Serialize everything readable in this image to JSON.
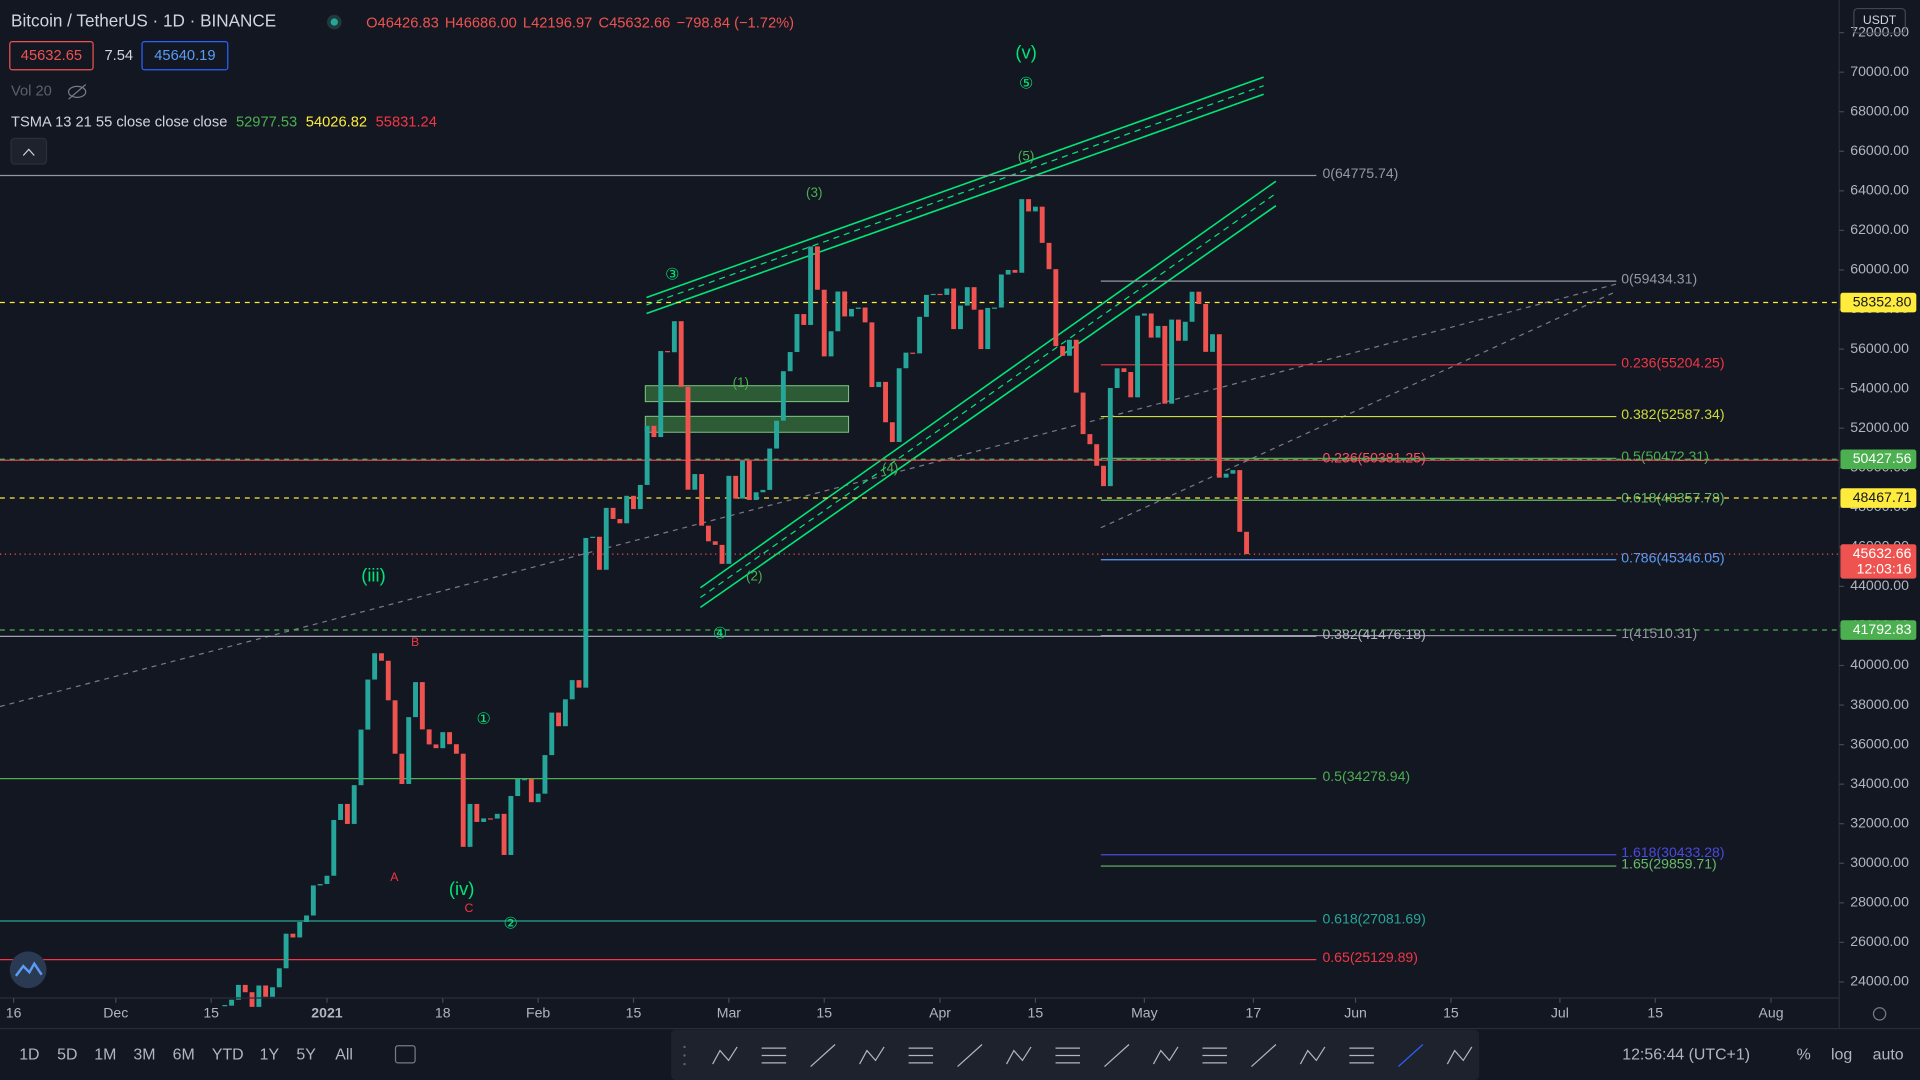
{
  "header": {
    "title": "Bitcoin / TetherUS · 1D · BINANCE",
    "ohlc": [
      "O46426.83",
      "H46686.00",
      "L42196.97",
      "C45632.66",
      "−798.84 (−1.72%)"
    ],
    "bid": "45632.65",
    "spread": "7.54",
    "ask": "45640.19",
    "volume": "Vol 20",
    "indicator": "TSMA 13 21 55 close close close",
    "indicator_values": [
      {
        "text": "52977.53",
        "color": "#4caf50"
      },
      {
        "text": "54026.82",
        "color": "#ffeb3b"
      },
      {
        "text": "55831.24",
        "color": "#f23645"
      }
    ],
    "axis_unit": "USDT"
  },
  "toolbar": {
    "timeframes": [
      "1D",
      "5D",
      "1M",
      "3M",
      "6M",
      "YTD",
      "1Y",
      "5Y",
      "All"
    ],
    "clock": "12:56:44 (UTC+1)",
    "scale_options": [
      "%",
      "log",
      "auto"
    ]
  },
  "chart_data": {
    "type": "candlestick",
    "colors": {
      "up": "#26a69a",
      "down": "#ef5350"
    },
    "x": [
      "2020-12-17",
      "2020-12-18",
      "2020-12-19",
      "2020-12-20",
      "2020-12-21",
      "2020-12-22",
      "2020-12-23",
      "2020-12-24",
      "2020-12-25",
      "2020-12-26",
      "2020-12-27",
      "2020-12-28",
      "2020-12-29",
      "2020-12-30",
      "2020-12-31",
      "2021-01-01",
      "2021-01-02",
      "2021-01-03",
      "2021-01-04",
      "2021-01-05",
      "2021-01-06",
      "2021-01-07",
      "2021-01-08",
      "2021-01-09",
      "2021-01-10",
      "2021-01-11",
      "2021-01-12",
      "2021-01-13",
      "2021-01-14",
      "2021-01-15",
      "2021-01-16",
      "2021-01-17",
      "2021-01-18",
      "2021-01-19",
      "2021-01-20",
      "2021-01-21",
      "2021-01-22",
      "2021-01-23",
      "2021-01-24",
      "2021-01-25",
      "2021-01-26",
      "2021-01-27",
      "2021-01-28",
      "2021-01-29",
      "2021-01-30",
      "2021-01-31",
      "2021-02-01",
      "2021-02-02",
      "2021-02-03",
      "2021-02-04",
      "2021-02-05",
      "2021-02-06",
      "2021-02-07",
      "2021-02-08",
      "2021-02-09",
      "2021-02-10",
      "2021-02-11",
      "2021-02-12",
      "2021-02-13",
      "2021-02-14",
      "2021-02-15",
      "2021-02-16",
      "2021-02-17",
      "2021-02-18",
      "2021-02-19",
      "2021-02-20",
      "2021-02-21",
      "2021-02-22",
      "2021-02-23",
      "2021-02-24",
      "2021-02-25",
      "2021-02-26",
      "2021-02-27",
      "2021-02-28",
      "2021-03-01",
      "2021-03-02",
      "2021-03-03",
      "2021-03-04",
      "2021-03-05",
      "2021-03-06",
      "2021-03-07",
      "2021-03-08",
      "2021-03-09",
      "2021-03-10",
      "2021-03-11",
      "2021-03-12",
      "2021-03-13",
      "2021-03-14",
      "2021-03-15",
      "2021-03-16",
      "2021-03-17",
      "2021-03-18",
      "2021-03-19",
      "2021-03-20",
      "2021-03-21",
      "2021-03-22",
      "2021-03-23",
      "2021-03-24",
      "2021-03-25",
      "2021-03-26",
      "2021-03-27",
      "2021-03-28",
      "2021-03-29",
      "2021-03-30",
      "2021-03-31",
      "2021-04-01",
      "2021-04-02",
      "2021-04-03",
      "2021-04-04",
      "2021-04-05",
      "2021-04-06",
      "2021-04-07",
      "2021-04-08",
      "2021-04-09",
      "2021-04-10",
      "2021-04-11",
      "2021-04-12",
      "2021-04-13",
      "2021-04-14",
      "2021-04-15",
      "2021-04-16",
      "2021-04-17",
      "2021-04-18",
      "2021-04-19",
      "2021-04-20",
      "2021-04-21",
      "2021-04-22",
      "2021-04-23",
      "2021-04-24",
      "2021-04-25",
      "2021-04-26",
      "2021-04-27",
      "2021-04-28",
      "2021-04-29",
      "2021-04-30",
      "2021-05-01",
      "2021-05-02",
      "2021-05-03",
      "2021-05-04",
      "2021-05-05",
      "2021-05-06",
      "2021-05-07",
      "2021-05-08",
      "2021-05-09",
      "2021-05-10",
      "2021-05-11",
      "2021-05-12",
      "2021-05-13",
      "2021-05-14",
      "2021-05-15",
      "2021-05-16"
    ],
    "values": [
      22800,
      23100,
      23850,
      23480,
      22740,
      23820,
      23250,
      23730,
      24690,
      26440,
      26250,
      27030,
      27360,
      28880,
      28950,
      29370,
      32190,
      33000,
      31990,
      33950,
      36760,
      39290,
      40620,
      40240,
      38240,
      35540,
      34010,
      37390,
      39160,
      36770,
      36010,
      35820,
      36630,
      36020,
      35540,
      30830,
      33000,
      32090,
      32270,
      32260,
      32500,
      30420,
      33400,
      34260,
      34260,
      33090,
      33520,
      35470,
      37620,
      36930,
      38290,
      39260,
      38880,
      46450,
      46510,
      44840,
      47970,
      47410,
      47190,
      48580,
      47910,
      49130,
      52120,
      51550,
      55900,
      55840,
      57410,
      54090,
      48890,
      49680,
      47070,
      46280,
      46100,
      45140,
      49590,
      48440,
      50350,
      48370,
      48760,
      48880,
      50970,
      52380,
      54880,
      55850,
      57770,
      57220,
      61190,
      59000,
      55630,
      56900,
      58910,
      57650,
      58030,
      58100,
      57350,
      54080,
      54340,
      52300,
      51300,
      55030,
      55820,
      55780,
      57630,
      58740,
      58790,
      58740,
      59060,
      57010,
      58200,
      59130,
      57990,
      56000,
      58080,
      58100,
      59770,
      60000,
      59860,
      63580,
      62960,
      63200,
      61370,
      60040,
      56150,
      55660,
      56470,
      53800,
      51700,
      51190,
      50100,
      49070,
      54030,
      55030,
      54840,
      53560,
      57690,
      57800,
      56580,
      57170,
      53240,
      57490,
      56420,
      57380,
      58900,
      58280,
      55860,
      56750,
      49500,
      49700,
      49880,
      46760,
      45632.66
    ],
    "xlim": [
      "2020-11-14",
      "2021-08-11"
    ],
    "xticks": [
      {
        "value": "2020-11-16",
        "label": "16"
      },
      {
        "value": "2020-12-01",
        "label": "Dec"
      },
      {
        "value": "2020-12-15",
        "label": "15"
      },
      {
        "value": "2021-01-01",
        "label": "2021"
      },
      {
        "value": "2021-01-18",
        "label": "18"
      },
      {
        "value": "2021-02-01",
        "label": "Feb"
      },
      {
        "value": "2021-02-15",
        "label": "15"
      },
      {
        "value": "2021-03-01",
        "label": "Mar"
      },
      {
        "value": "2021-03-15",
        "label": "15"
      },
      {
        "value": "2021-04-01",
        "label": "Apr"
      },
      {
        "value": "2021-04-15",
        "label": "15"
      },
      {
        "value": "2021-05-01",
        "label": "May"
      },
      {
        "value": "2021-05-17",
        "label": "17"
      },
      {
        "value": "2021-06-01",
        "label": "Jun"
      },
      {
        "value": "2021-06-15",
        "label": "15"
      },
      {
        "value": "2021-07-01",
        "label": "Jul"
      },
      {
        "value": "2021-07-15",
        "label": "15"
      },
      {
        "value": "2021-08-01",
        "label": "Aug"
      }
    ],
    "ylim": [
      23190,
      73650
    ],
    "yticks": [
      {
        "value": 24000,
        "label": "24000.00"
      },
      {
        "value": 26000,
        "label": "26000.00"
      },
      {
        "value": 28000,
        "label": "28000.00"
      },
      {
        "value": 30000,
        "label": "30000.00"
      },
      {
        "value": 32000,
        "label": "32000.00"
      },
      {
        "value": 34000,
        "label": "34000.00"
      },
      {
        "value": 36000,
        "label": "36000.00"
      },
      {
        "value": 38000,
        "label": "38000.00"
      },
      {
        "value": 40000,
        "label": "40000.00"
      },
      {
        "value": 42000,
        "label": "42000.00"
      },
      {
        "value": 44000,
        "label": "44000.00"
      },
      {
        "value": 46000,
        "label": "46000.00"
      },
      {
        "value": 48000,
        "label": "48000.00"
      },
      {
        "value": 50000,
        "label": "50000.00"
      },
      {
        "value": 52000,
        "label": "52000.00"
      },
      {
        "value": 54000,
        "label": "54000.00"
      },
      {
        "value": 56000,
        "label": "56000.00"
      },
      {
        "value": 58000,
        "label": "58000.00"
      },
      {
        "value": 60000,
        "label": "60000.00"
      },
      {
        "value": 62000,
        "label": "62000.00"
      },
      {
        "value": 64000,
        "label": "64000.00"
      },
      {
        "value": 66000,
        "label": "66000.00"
      },
      {
        "value": 68000,
        "label": "68000.00"
      },
      {
        "value": 70000,
        "label": "70000.00"
      },
      {
        "value": 72000,
        "label": "72000.00"
      }
    ],
    "levels": [
      {
        "value": 59434.31,
        "label": "0(59434.31)",
        "color": "#9598a1"
      },
      {
        "value": 55204.25,
        "label": "0.236(55204.25)",
        "color": "#f23645"
      },
      {
        "value": 52587.34,
        "label": "0.382(52587.34)",
        "color": "#cddc39"
      },
      {
        "value": 50472.31,
        "label": "0.5(50472.31)",
        "color": "#4caf50"
      },
      {
        "value": 48357.78,
        "label": "0.618(48357.78)",
        "color": "#66bb6a"
      },
      {
        "value": 45346.05,
        "label": "0.786(45346.05)",
        "color": "#5b9cf6"
      },
      {
        "value": 41510.31,
        "label": "1(41510.31)",
        "color": "#9598a1"
      },
      {
        "value": 30433.28,
        "label": "1.618(30433.28)",
        "color": "#4a4ae0"
      },
      {
        "value": 29859.71,
        "label": "1.65(29859.71)",
        "color": "#66bb6a"
      },
      {
        "value": 64775.74,
        "label": "0(64775.74)",
        "color": "#9598a1"
      },
      {
        "value": 50381.25,
        "label": "0.236(50381.25)",
        "color": "#f7525f"
      },
      {
        "value": 41476.18,
        "label": "0.382(41476.18)",
        "color": "#b2b5be"
      },
      {
        "value": 34278.94,
        "label": "0.5(34278.94)",
        "color": "#4caf50"
      },
      {
        "value": 27081.69,
        "label": "0.618(27081.69)",
        "color": "#26a69a"
      },
      {
        "value": 25129.89,
        "label": "0.65(25129.89)",
        "color": "#f23645"
      }
    ],
    "price_tags": [
      {
        "value": 58352.8,
        "label": "58352.80",
        "color": "#ffeb3b",
        "text_color": "#131722"
      },
      {
        "value": 50427.56,
        "label": "50427.56",
        "color": "#4caf50",
        "text_color": "#ffffff"
      },
      {
        "value": 48467.71,
        "label": "48467.71",
        "color": "#ffeb3b",
        "text_color": "#131722"
      },
      {
        "value": 45632.66,
        "label": "45632.66",
        "countdown": "12:03:16",
        "color": "#ef5350",
        "text_color": "#ffffff"
      },
      {
        "value": 41792.83,
        "label": "41792.83",
        "color": "#4caf50",
        "text_color": "#ffffff"
      }
    ],
    "wave_labels": [
      {
        "text": "(v)",
        "color": "#00e676"
      },
      {
        "text": "⑤",
        "color": "#00e676"
      },
      {
        "text": "(5)",
        "color": "#4caf50"
      },
      {
        "text": "(3)",
        "color": "#4caf50"
      },
      {
        "text": "③",
        "color": "#00e676"
      },
      {
        "text": "(1)",
        "color": "#4caf50"
      },
      {
        "text": "(4)",
        "color": "#4caf50"
      },
      {
        "text": "(2)",
        "color": "#4caf50"
      },
      {
        "text": "④",
        "color": "#00e676"
      },
      {
        "text": "(iii)",
        "color": "#00e676"
      },
      {
        "text": "①",
        "color": "#00e676"
      },
      {
        "text": "(iv)",
        "color": "#00e676"
      },
      {
        "text": "②",
        "color": "#00e676"
      },
      {
        "text": "B",
        "color": "#f23645"
      },
      {
        "text": "A",
        "color": "#f23645"
      },
      {
        "text": "C",
        "color": "#f23645"
      }
    ]
  }
}
